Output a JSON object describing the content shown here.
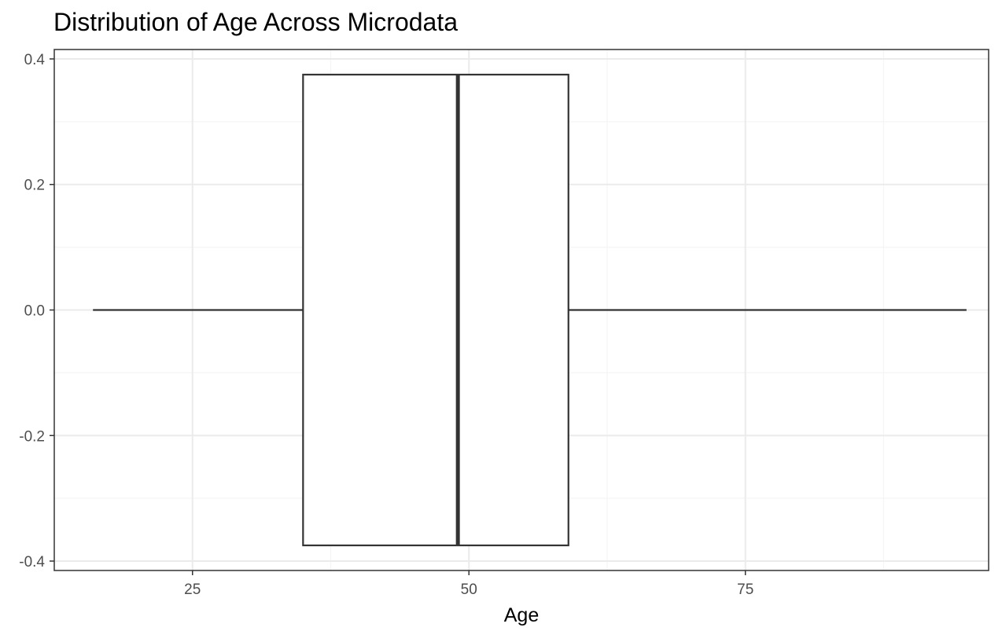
{
  "chart_data": {
    "type": "box",
    "title": "Distribution of Age Across Microdata",
    "xlabel": "Age",
    "ylabel": "",
    "xlim": [
      12.5,
      97.0
    ],
    "ylim": [
      -0.415,
      0.415
    ],
    "x_ticks": [
      25,
      50,
      75
    ],
    "x_tick_labels": [
      "25",
      "50",
      "75"
    ],
    "x_minor_ticks": [
      37.5,
      62.5,
      87.5
    ],
    "y_ticks": [
      -0.4,
      -0.2,
      0.0,
      0.2,
      0.4
    ],
    "y_tick_labels": [
      "-0.4",
      "-0.2",
      "0.0",
      "0.2",
      "0.4"
    ],
    "y_minor_ticks": [
      -0.3,
      -0.1,
      0.1,
      0.3
    ],
    "grid": true,
    "legend": "none",
    "box": {
      "min": 16,
      "q1": 35,
      "median": 49,
      "q3": 59,
      "max": 95,
      "y_center": 0.0,
      "half_width": 0.375
    },
    "colors": {
      "box_fill": "#ffffff",
      "box_stroke": "#333333",
      "grid_major": "#ebebeb",
      "grid_minor": "#f5f5f5",
      "panel_border": "#333333",
      "tick_text": "#4d4d4d",
      "axis_title": "#000000"
    }
  }
}
